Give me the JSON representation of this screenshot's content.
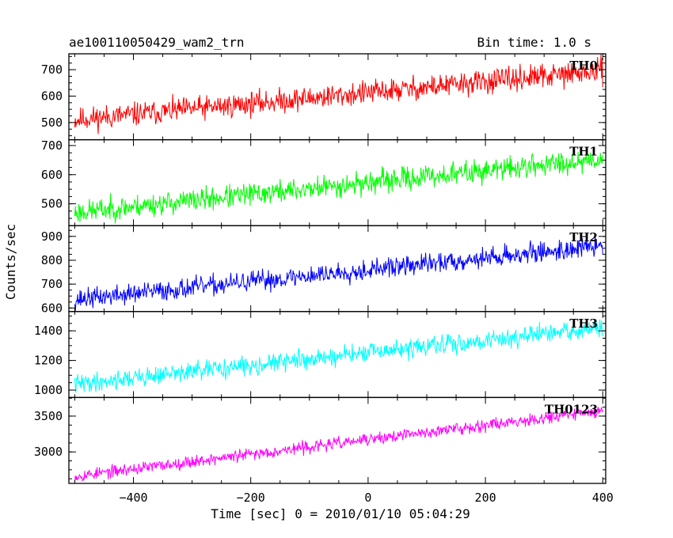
{
  "header": {
    "title": "ae100110050429_wam2_trn",
    "bin_time": "Bin time: 1.0 s"
  },
  "chart_data": {
    "type": "line",
    "xlabel": "Time [sec] 0 = 2010/01/10 05:04:29",
    "ylabel": "Counts/sec",
    "xlim": [
      -510,
      405
    ],
    "x_ticks": [
      -400,
      -200,
      0,
      200,
      400
    ],
    "x_tick_labels": [
      "−400",
      "−200",
      "0",
      "200",
      "400"
    ],
    "x_range": [
      -500,
      400
    ],
    "bin_time_s": 1.0,
    "panels": [
      {
        "name": "TH0",
        "color": "#ff0000",
        "ylim": [
          435,
          760
        ],
        "y_ticks": [
          500,
          600,
          700
        ],
        "y_tick_labels": [
          "500",
          "600",
          "700"
        ],
        "trend_start": 510,
        "trend_end": 695,
        "noise": 32,
        "seed": 11
      },
      {
        "name": "TH1",
        "color": "#00ff00",
        "ylim": [
          425,
          720
        ],
        "y_ticks": [
          500,
          600,
          700
        ],
        "y_tick_labels": [
          "500",
          "600",
          "700"
        ],
        "trend_start": 470,
        "trend_end": 655,
        "noise": 28,
        "seed": 23
      },
      {
        "name": "TH2",
        "color": "#0000ff",
        "ylim": [
          585,
          945
        ],
        "y_ticks": [
          600,
          700,
          800,
          900
        ],
        "y_tick_labels": [
          "600",
          "700",
          "800",
          "900"
        ],
        "trend_start": 635,
        "trend_end": 860,
        "noise": 30,
        "seed": 37
      },
      {
        "name": "TH3",
        "color": "#00ffff",
        "ylim": [
          950,
          1530
        ],
        "y_ticks": [
          1000,
          1200,
          1400
        ],
        "y_tick_labels": [
          "1000",
          "1200",
          "1400"
        ],
        "trend_start": 1040,
        "trend_end": 1420,
        "noise": 45,
        "seed": 41
      },
      {
        "name": "TH0123",
        "color": "#ff00ff",
        "ylim": [
          2560,
          3760
        ],
        "y_ticks": [
          3000,
          3500
        ],
        "y_tick_labels": [
          "3000",
          "3500"
        ],
        "trend_start": 2660,
        "trend_end": 3580,
        "noise": 60,
        "seed": 53
      }
    ]
  }
}
